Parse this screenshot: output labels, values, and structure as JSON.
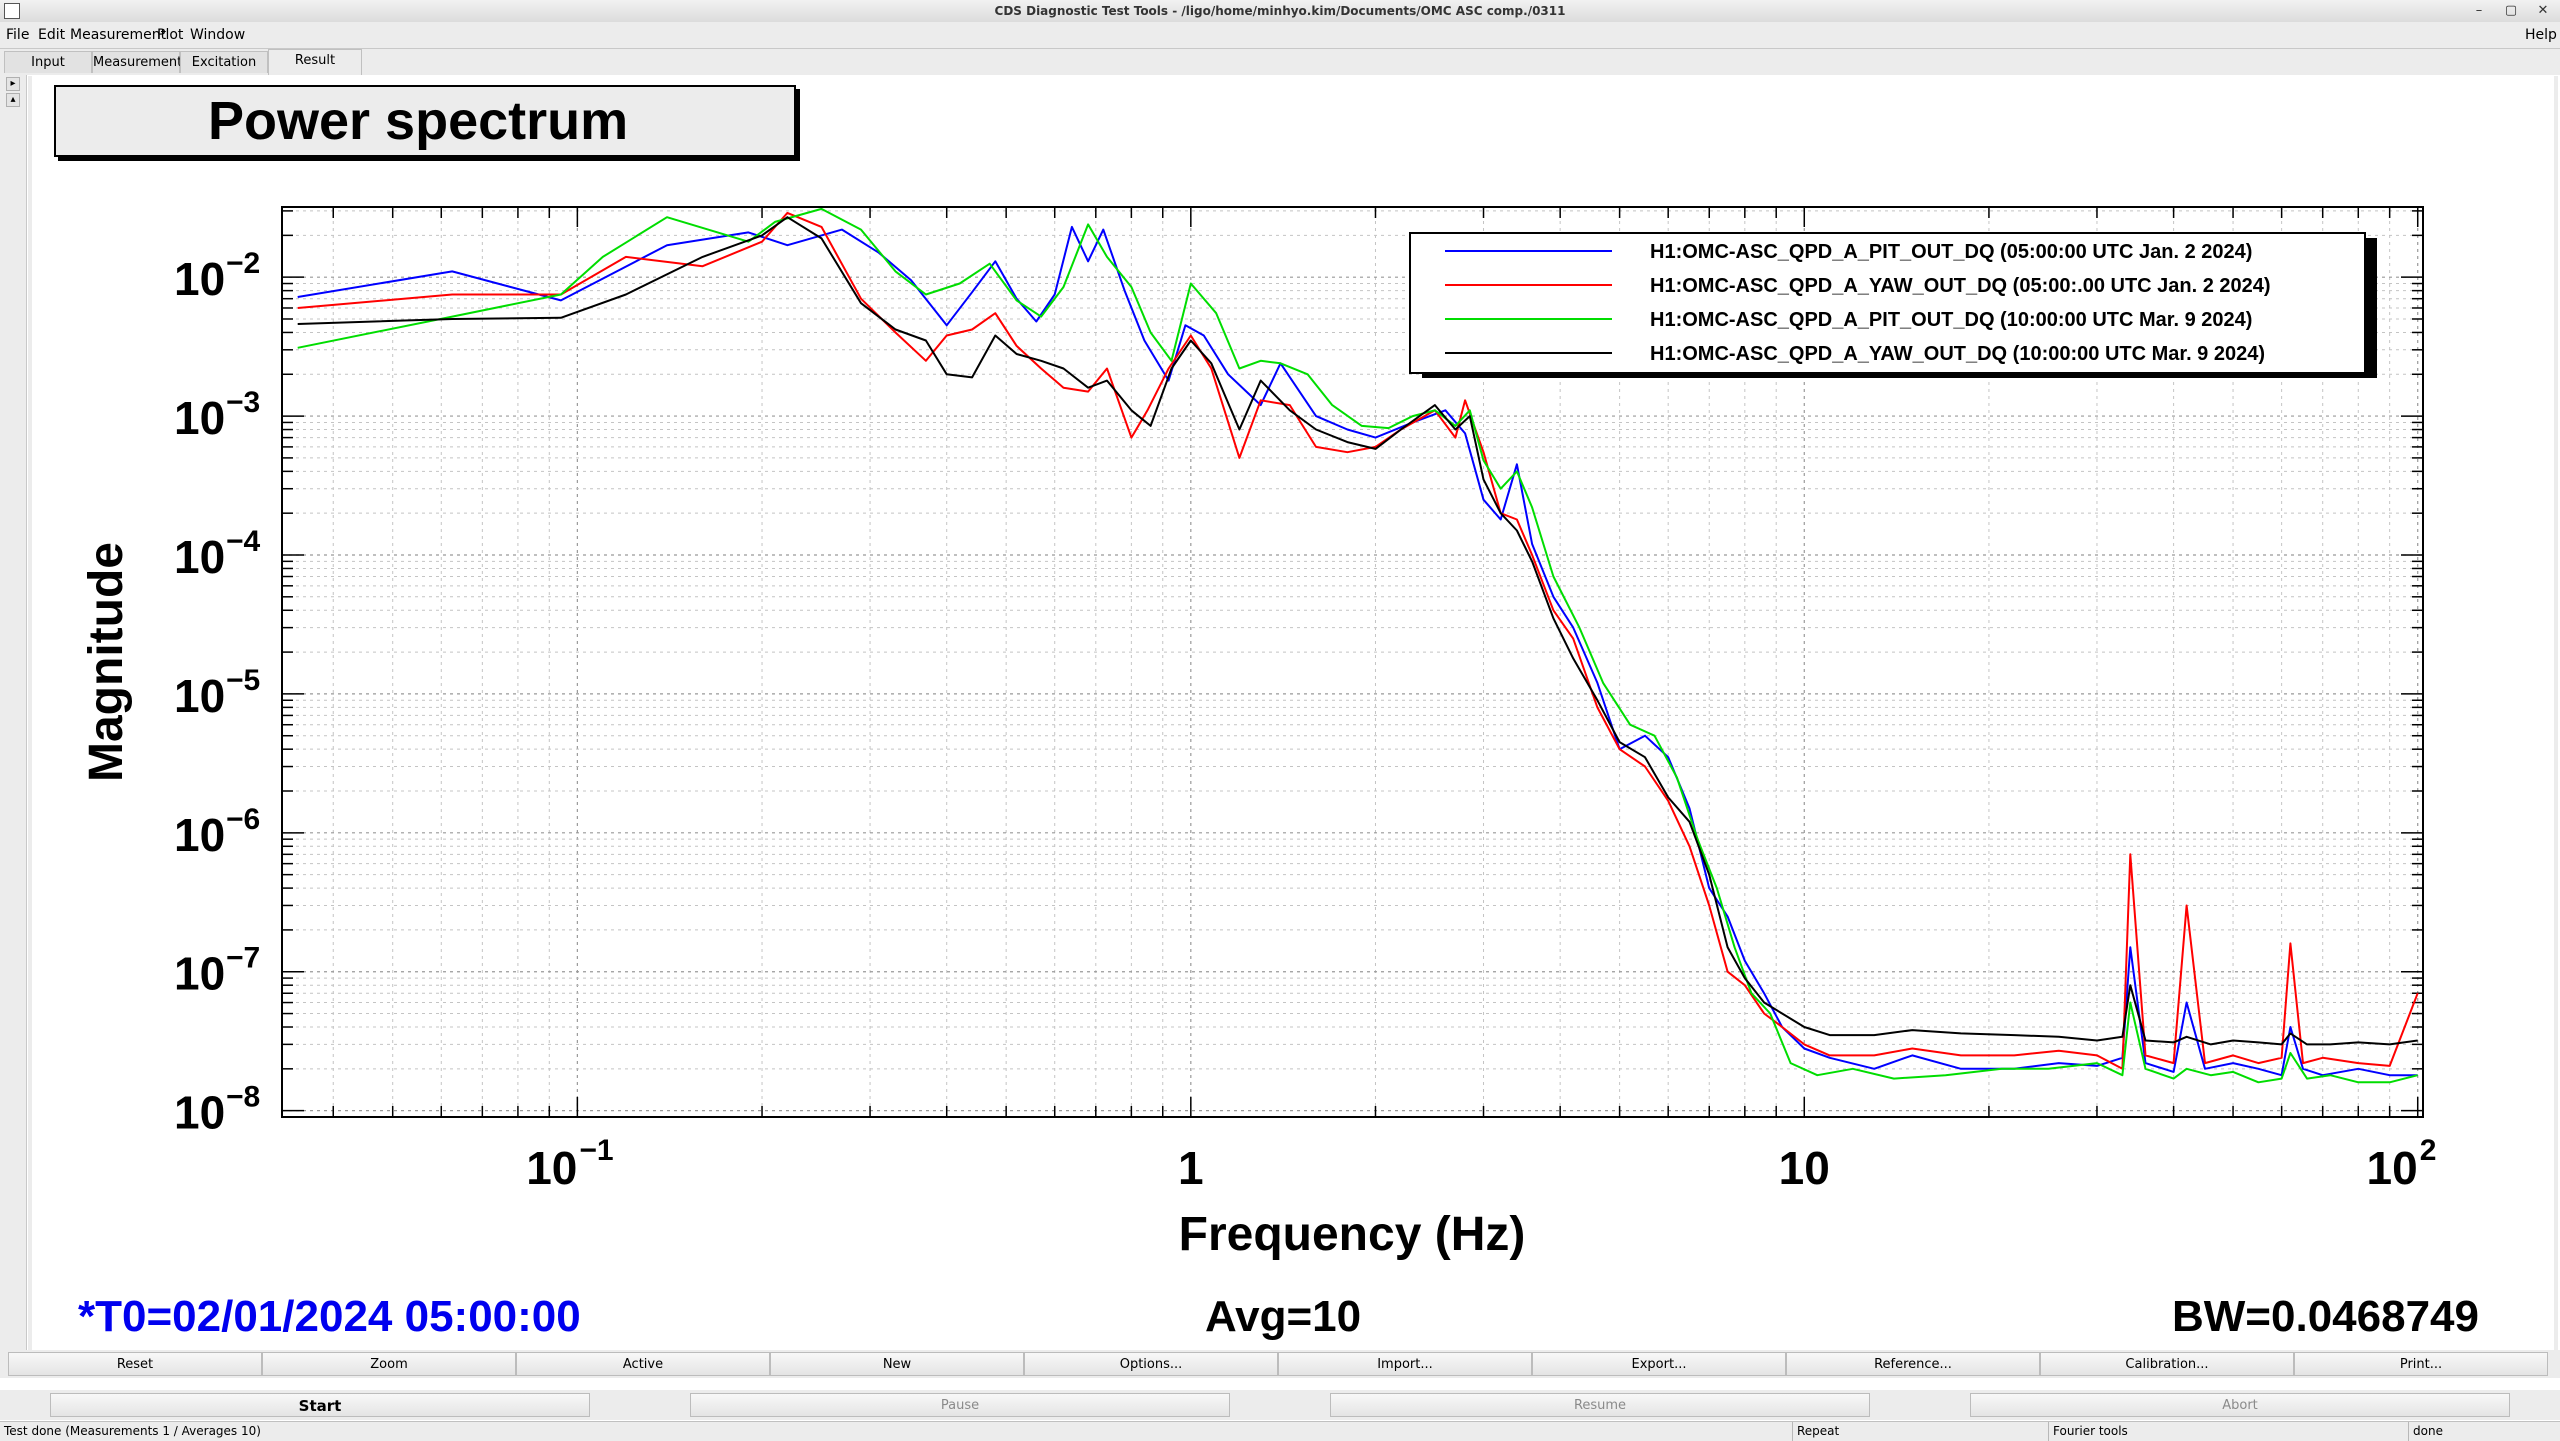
{
  "window": {
    "title": "CDS Diagnostic Test Tools - /ligo/home/minhyo.kim/Documents/OMC ASC comp./0311",
    "controls": [
      "–",
      "▢",
      "✕"
    ]
  },
  "menu": {
    "file": "File",
    "edit": "Edit",
    "measurement": "Measurement",
    "plot": "Plot",
    "window": "Window",
    "help": "Help"
  },
  "tabs": {
    "input": "Input",
    "measurement": "Measurement",
    "excitation": "Excitation",
    "result": "Result",
    "active": "Result"
  },
  "plot_title": "Power spectrum",
  "info": {
    "t0": "*T0=02/01/2024 05:00:00",
    "avg": "Avg=10",
    "bw": "BW=0.0468749",
    "t0_color": "#0000ee"
  },
  "plot_buttons": {
    "reset": "Reset",
    "zoom": "Zoom",
    "active": "Active",
    "new": "New",
    "options": "Options...",
    "import": "Import...",
    "export": "Export...",
    "reference": "Reference...",
    "calibration": "Calibration...",
    "print": "Print..."
  },
  "control_buttons": {
    "start": "Start",
    "pause": "Pause",
    "resume": "Resume",
    "abort": "Abort"
  },
  "status": {
    "message": "Test done (Measurements 1 / Averages 10)",
    "repeat": "Repeat",
    "mode": "Fourier tools",
    "state": "done"
  },
  "chart_data": {
    "type": "line",
    "title": "Power spectrum",
    "xlabel": "Frequency (Hz)",
    "ylabel": "Magnitude",
    "xscale": "log",
    "yscale": "log",
    "xlim": [
      0.033,
      102
    ],
    "ylim": [
      9e-09,
      0.032
    ],
    "grid": true,
    "legend_position": "top-right",
    "x_ticks": [
      {
        "value": 0.1,
        "base": "10",
        "exp": "−1"
      },
      {
        "value": 1,
        "base": "1",
        "exp": ""
      },
      {
        "value": 10,
        "base": "10",
        "exp": ""
      },
      {
        "value": 100,
        "base": "10",
        "exp": "2"
      }
    ],
    "y_ticks": [
      {
        "value": 0.01,
        "exp": "−2"
      },
      {
        "value": 0.001,
        "exp": "−3"
      },
      {
        "value": 0.0001,
        "exp": "−4"
      },
      {
        "value": 1e-05,
        "exp": "−5"
      },
      {
        "value": 1e-06,
        "exp": "−6"
      },
      {
        "value": 1e-07,
        "exp": "−7"
      },
      {
        "value": 1e-08,
        "exp": "−8"
      }
    ],
    "series": [
      {
        "name": "H1:OMC-ASC_QPD_A_PIT_OUT_DQ (05:00:00 UTC Jan. 2 2024)",
        "color": "#0000ff",
        "x": [
          0.035,
          0.0625,
          0.094,
          0.14,
          0.19,
          0.22,
          0.27,
          0.31,
          0.35,
          0.4,
          0.44,
          0.48,
          0.52,
          0.56,
          0.6,
          0.64,
          0.68,
          0.72,
          0.78,
          0.84,
          0.92,
          0.98,
          1.05,
          1.15,
          1.3,
          1.4,
          1.6,
          1.8,
          2.0,
          2.3,
          2.6,
          2.8,
          3.0,
          3.2,
          3.4,
          3.6,
          3.9,
          4.2,
          4.6,
          5.0,
          5.5,
          6.0,
          6.5,
          7.0,
          7.5,
          8.0,
          8.6,
          9.2,
          10,
          11,
          13,
          15,
          18,
          22,
          26,
          30,
          33,
          34,
          36,
          40,
          42,
          45,
          50,
          55,
          60,
          62,
          65,
          70,
          80,
          90,
          100
        ],
        "y": [
          0.0072,
          0.011,
          0.0068,
          0.017,
          0.021,
          0.017,
          0.022,
          0.015,
          0.0095,
          0.0045,
          0.0078,
          0.013,
          0.007,
          0.0048,
          0.0075,
          0.023,
          0.013,
          0.022,
          0.008,
          0.0035,
          0.0018,
          0.0045,
          0.0038,
          0.002,
          0.0012,
          0.0024,
          0.001,
          0.0008,
          0.0007,
          0.0009,
          0.0011,
          0.00075,
          0.00025,
          0.00018,
          0.00045,
          0.00012,
          5e-05,
          3e-05,
          1.2e-05,
          4e-06,
          5e-06,
          3.5e-06,
          1.5e-06,
          4e-07,
          2.5e-07,
          1.2e-07,
          7e-08,
          4e-08,
          2.8e-08,
          2.4e-08,
          2e-08,
          2.5e-08,
          2e-08,
          2e-08,
          2.2e-08,
          2.1e-08,
          2.4e-08,
          1.5e-07,
          2.2e-08,
          1.9e-08,
          6e-08,
          2e-08,
          2.2e-08,
          2e-08,
          1.8e-08,
          4e-08,
          2e-08,
          1.8e-08,
          2e-08,
          1.8e-08,
          1.8e-08
        ]
      },
      {
        "name": "H1:OMC-ASC_QPD_A_YAW_OUT_DQ (05:00:.00 UTC Jan. 2 2024)",
        "color": "#ff0000",
        "x": [
          0.035,
          0.0625,
          0.094,
          0.12,
          0.16,
          0.2,
          0.22,
          0.25,
          0.29,
          0.33,
          0.37,
          0.4,
          0.44,
          0.48,
          0.52,
          0.57,
          0.62,
          0.68,
          0.73,
          0.8,
          0.85,
          0.92,
          1.0,
          1.08,
          1.2,
          1.3,
          1.45,
          1.6,
          1.8,
          2.0,
          2.2,
          2.5,
          2.7,
          2.8,
          3.0,
          3.2,
          3.4,
          3.6,
          3.9,
          4.2,
          4.6,
          5.0,
          5.5,
          6.0,
          6.5,
          7.0,
          7.5,
          8.0,
          8.6,
          9.2,
          10,
          11,
          13,
          15,
          18,
          22,
          26,
          30,
          33,
          34,
          36,
          40,
          42,
          45,
          50,
          55,
          60,
          62,
          65,
          70,
          80,
          90,
          100
        ],
        "y": [
          0.006,
          0.0075,
          0.0075,
          0.014,
          0.012,
          0.018,
          0.029,
          0.023,
          0.007,
          0.004,
          0.0025,
          0.0038,
          0.0042,
          0.0055,
          0.0032,
          0.0022,
          0.0016,
          0.0015,
          0.0022,
          0.0007,
          0.0011,
          0.0022,
          0.0038,
          0.0022,
          0.0005,
          0.0013,
          0.0012,
          0.0006,
          0.00055,
          0.0006,
          0.0008,
          0.0011,
          0.0007,
          0.0013,
          0.00055,
          0.0002,
          0.00018,
          0.0001,
          4e-05,
          2.5e-05,
          8e-06,
          4e-06,
          3e-06,
          1.7e-06,
          8e-07,
          3e-07,
          1e-07,
          8e-08,
          5e-08,
          4e-08,
          3e-08,
          2.5e-08,
          2.5e-08,
          2.8e-08,
          2.5e-08,
          2.5e-08,
          2.7e-08,
          2.5e-08,
          2e-08,
          7e-07,
          2.5e-08,
          2.2e-08,
          3e-07,
          2.2e-08,
          2.5e-08,
          2.2e-08,
          2.4e-08,
          1.6e-07,
          2.2e-08,
          2.4e-08,
          2.2e-08,
          2.1e-08,
          7e-08
        ]
      },
      {
        "name": "H1:OMC-ASC_QPD_A_PIT_OUT_DQ (10:00:00 UTC Mar. 9 2024)",
        "color": "#00dd00",
        "x": [
          0.035,
          0.0625,
          0.094,
          0.11,
          0.14,
          0.19,
          0.21,
          0.25,
          0.29,
          0.33,
          0.37,
          0.42,
          0.47,
          0.52,
          0.57,
          0.62,
          0.68,
          0.73,
          0.8,
          0.86,
          0.93,
          1.0,
          1.1,
          1.2,
          1.3,
          1.4,
          1.55,
          1.7,
          1.9,
          2.1,
          2.3,
          2.5,
          2.7,
          2.85,
          3.0,
          3.2,
          3.4,
          3.6,
          3.9,
          4.3,
          4.7,
          5.2,
          5.7,
          6.2,
          6.7,
          7.2,
          7.7,
          8.2,
          8.8,
          9.5,
          10.5,
          12,
          14,
          17,
          21,
          25,
          30,
          33,
          34,
          36,
          40,
          42,
          46,
          50,
          55,
          60,
          62,
          66,
          72,
          80,
          90,
          100
        ],
        "y": [
          0.0031,
          0.0052,
          0.0075,
          0.014,
          0.027,
          0.018,
          0.025,
          0.031,
          0.022,
          0.011,
          0.0075,
          0.009,
          0.0125,
          0.0068,
          0.0052,
          0.0085,
          0.024,
          0.014,
          0.0085,
          0.004,
          0.0025,
          0.009,
          0.0055,
          0.0022,
          0.0025,
          0.0024,
          0.002,
          0.0012,
          0.00085,
          0.00082,
          0.001,
          0.0011,
          0.00085,
          0.0011,
          0.00048,
          0.0003,
          0.0004,
          0.00022,
          7e-05,
          3e-05,
          1.2e-05,
          6e-06,
          5e-06,
          2.5e-06,
          9e-07,
          4e-07,
          1.5e-07,
          7e-08,
          5e-08,
          2.2e-08,
          1.8e-08,
          2e-08,
          1.7e-08,
          1.8e-08,
          2e-08,
          2e-08,
          2.2e-08,
          1.8e-08,
          6e-08,
          2e-08,
          1.7e-08,
          2e-08,
          1.8e-08,
          1.9e-08,
          1.6e-08,
          1.7e-08,
          2.6e-08,
          1.7e-08,
          1.8e-08,
          1.6e-08,
          1.6e-08,
          1.8e-08
        ]
      },
      {
        "name": "H1:OMC-ASC_QPD_A_YAW_OUT_DQ (10:00:00 UTC Mar. 9 2024)",
        "color": "#000000",
        "x": [
          0.035,
          0.0625,
          0.094,
          0.12,
          0.16,
          0.2,
          0.22,
          0.25,
          0.29,
          0.33,
          0.37,
          0.4,
          0.44,
          0.48,
          0.52,
          0.57,
          0.62,
          0.68,
          0.73,
          0.8,
          0.86,
          0.93,
          1.0,
          1.08,
          1.2,
          1.3,
          1.45,
          1.6,
          1.8,
          2.0,
          2.2,
          2.5,
          2.7,
          2.85,
          3.0,
          3.2,
          3.4,
          3.6,
          3.9,
          4.2,
          4.6,
          5.0,
          5.5,
          6.0,
          6.5,
          7.0,
          7.5,
          8.0,
          8.6,
          9.2,
          10,
          11,
          13,
          15,
          18,
          22,
          26,
          30,
          33,
          34,
          36,
          40,
          42,
          46,
          50,
          55,
          60,
          62,
          66,
          72,
          80,
          90,
          100
        ],
        "y": [
          0.0046,
          0.005,
          0.0051,
          0.0075,
          0.014,
          0.02,
          0.027,
          0.019,
          0.0065,
          0.0042,
          0.0035,
          0.002,
          0.0019,
          0.0038,
          0.0028,
          0.0025,
          0.0022,
          0.0016,
          0.0018,
          0.0011,
          0.00085,
          0.0022,
          0.0035,
          0.0024,
          0.0008,
          0.0018,
          0.0011,
          0.0008,
          0.00065,
          0.00058,
          0.0008,
          0.0012,
          0.0008,
          0.001,
          0.00035,
          0.0002,
          0.00015,
          9e-05,
          3.5e-05,
          1.8e-05,
          9e-06,
          4.5e-06,
          3.5e-06,
          1.8e-06,
          1.2e-06,
          5e-07,
          1.5e-07,
          9e-08,
          6e-08,
          5e-08,
          4e-08,
          3.5e-08,
          3.5e-08,
          3.8e-08,
          3.6e-08,
          3.5e-08,
          3.4e-08,
          3.2e-08,
          3.4e-08,
          8e-08,
          3.2e-08,
          3.1e-08,
          3.4e-08,
          3e-08,
          3.2e-08,
          3.1e-08,
          3e-08,
          3.6e-08,
          3e-08,
          3e-08,
          3.1e-08,
          3e-08,
          3.2e-08
        ]
      }
    ]
  }
}
